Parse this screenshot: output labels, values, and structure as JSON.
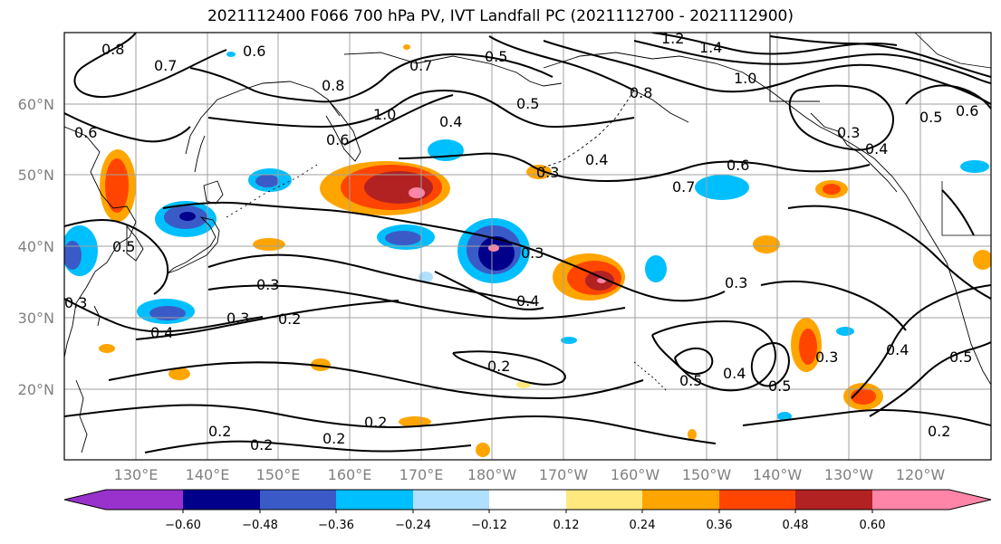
{
  "title": "2021112400 F066 700 hPa PV, IVT Landfall PC (2021112700 - 2021112900)",
  "lat_labels": [
    "60°N",
    "50°N",
    "40°N",
    "30°N",
    "20°N"
  ],
  "lon_labels": [
    "130°E",
    "140°E",
    "150°E",
    "160°E",
    "170°E",
    "180°W",
    "170°W",
    "160°W",
    "150°W",
    "140°W",
    "130°W",
    "120°W"
  ],
  "contour_labels": [
    "0.8",
    "0.7",
    "0.6",
    "0.7",
    "0.5",
    "1.2",
    "1.4",
    "1.0",
    "0.8",
    "1.0",
    "0.6",
    "0.4",
    "0.5",
    "0.8",
    "0.3",
    "0.4",
    "0.6",
    "0.5",
    "0.7",
    "0.6",
    "0.4",
    "0.6",
    "0.5",
    "0.3",
    "0.3",
    "0.4",
    "0.3",
    "0.3",
    "0.2",
    "0.4",
    "0.2",
    "0.5",
    "0.4",
    "0.5",
    "0.3",
    "0.4",
    "0.5",
    "0.2",
    "0.2",
    "0.2",
    "0.2",
    "0.2",
    "0.3",
    "0.3"
  ],
  "colorbar": {
    "tick_labels": [
      "−0.60",
      "−0.48",
      "−0.36",
      "−0.24",
      "−0.12",
      "0.12",
      "0.24",
      "0.36",
      "0.48",
      "0.60"
    ],
    "colors": [
      "#9932CC",
      "#00008B",
      "#3A5BC7",
      "#00BFFF",
      "#B0E0FF",
      "#FFFFFF",
      "#FFE97F",
      "#FFA500",
      "#FF4500",
      "#B22222",
      "#FF85A8"
    ]
  }
}
